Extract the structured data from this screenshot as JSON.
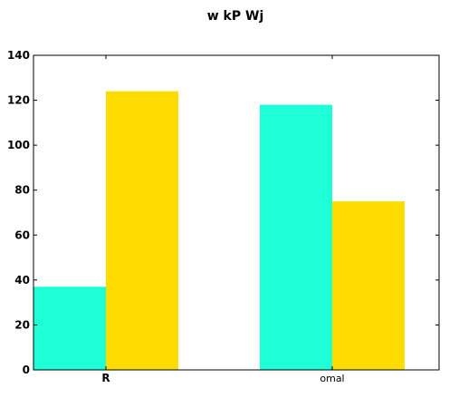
{
  "chart_data": {
    "type": "bar",
    "title": "w kP Wj",
    "xlabel": "",
    "ylabel": "",
    "categories": [
      "R",
      "omal"
    ],
    "series": [
      {
        "values": [
          37,
          118
        ],
        "color": "#1effd7"
      },
      {
        "values": [
          124,
          75
        ],
        "color": "#ffdc00"
      }
    ],
    "ylim": [
      0,
      140
    ],
    "yticks": [
      0,
      20,
      40,
      60,
      80,
      100,
      120,
      140
    ],
    "grid": false,
    "legend": "none"
  }
}
